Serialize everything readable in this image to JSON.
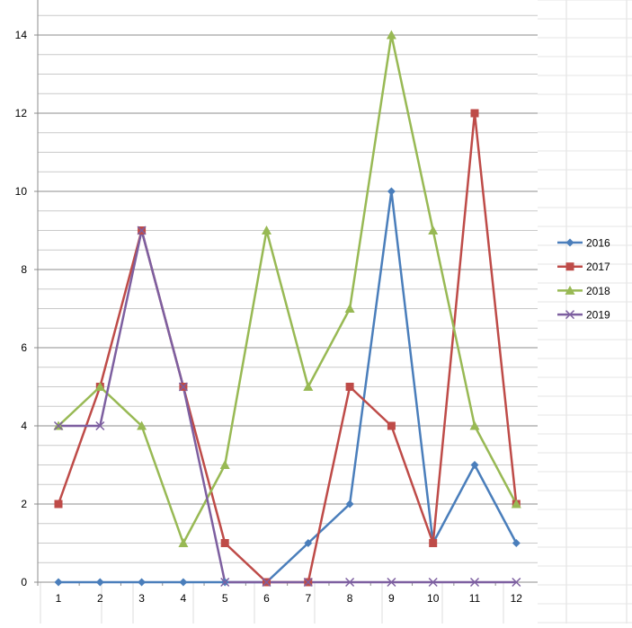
{
  "chart_data": {
    "type": "line",
    "x": [
      1,
      2,
      3,
      4,
      5,
      6,
      7,
      8,
      9,
      10,
      11,
      12
    ],
    "categories": [
      "1",
      "2",
      "3",
      "4",
      "5",
      "6",
      "7",
      "8",
      "9",
      "10",
      "11",
      "12"
    ],
    "ylim": [
      0,
      14
    ],
    "y_ticks": [
      "0",
      "2",
      "4",
      "6",
      "8",
      "10",
      "12",
      "14"
    ],
    "grid": true,
    "legend_position": "right",
    "series": [
      {
        "name": "2016",
        "color": "#4a7ebb",
        "marker": "diamond",
        "values": [
          0,
          0,
          0,
          0,
          0,
          0,
          1,
          2,
          10,
          1,
          3,
          1
        ]
      },
      {
        "name": "2017",
        "color": "#be4b48",
        "marker": "square",
        "values": [
          2,
          5,
          9,
          5,
          1,
          0,
          0,
          5,
          4,
          1,
          12,
          2
        ]
      },
      {
        "name": "2018",
        "color": "#98b954",
        "marker": "triangle",
        "values": [
          4,
          5,
          4,
          1,
          3,
          9,
          5,
          7,
          14,
          9,
          4,
          2
        ]
      },
      {
        "name": "2019",
        "color": "#7d5fa0",
        "marker": "x",
        "values": [
          4,
          4,
          9,
          5,
          0,
          0,
          0,
          0,
          0,
          0,
          0,
          0
        ]
      }
    ]
  }
}
